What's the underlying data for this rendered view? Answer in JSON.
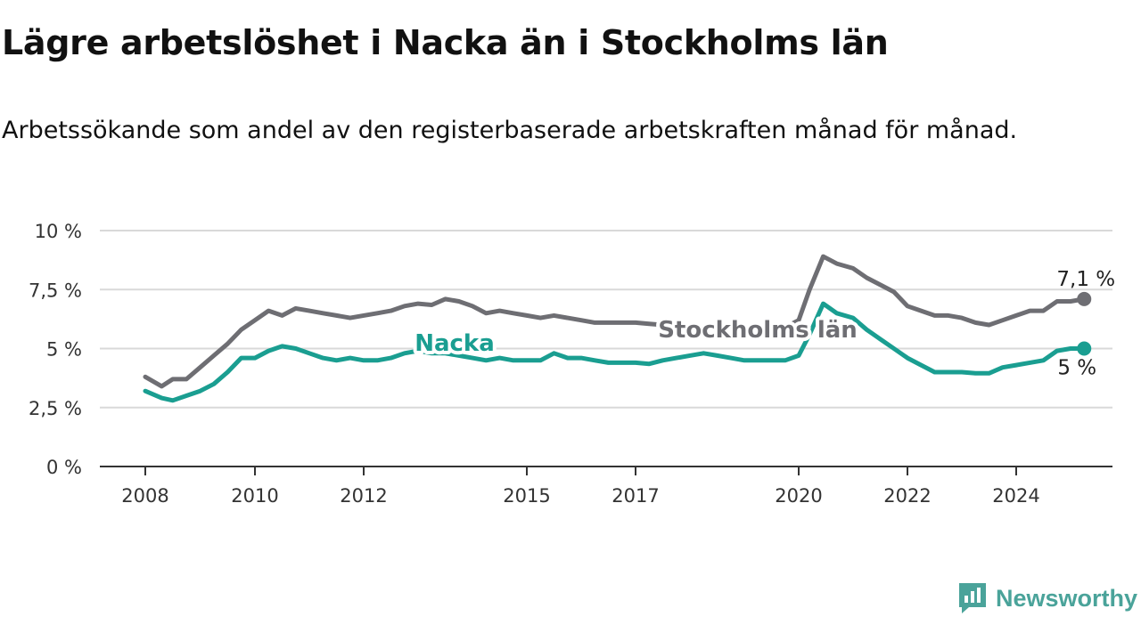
{
  "title": "Lägre arbetslöshet i Nacka än i Stockholms län",
  "subtitle": "Arbetssökande som andel av den registerbaserade arbetskraften månad för månad.",
  "brand": "Newsworthy",
  "colors": {
    "nacka": "#1a9e91",
    "stockholm": "#6e6e73",
    "grid": "#d9d9d9",
    "axis": "#333333",
    "brand": "#4aa39a"
  },
  "chart_data": {
    "type": "line",
    "title": "Lägre arbetslöshet i Nacka än i Stockholms län",
    "subtitle": "Arbetssökande som andel av den registerbaserade arbetskraften månad för månad.",
    "ylim": [
      0,
      10
    ],
    "xlim": [
      2008,
      2025.75
    ],
    "y_ticks": [
      {
        "v": 0,
        "label": "0 %"
      },
      {
        "v": 2.5,
        "label": "2,5 %"
      },
      {
        "v": 5,
        "label": "5 %"
      },
      {
        "v": 7.5,
        "label": "7,5 %"
      },
      {
        "v": 10,
        "label": "10 %"
      }
    ],
    "x_ticks": [
      {
        "v": 2008,
        "label": "2008"
      },
      {
        "v": 2010,
        "label": "2010"
      },
      {
        "v": 2012,
        "label": "2012"
      },
      {
        "v": 2015,
        "label": "2015"
      },
      {
        "v": 2017,
        "label": "2017"
      },
      {
        "v": 2020,
        "label": "2020"
      },
      {
        "v": 2022,
        "label": "2022"
      },
      {
        "v": 2024,
        "label": "2024"
      }
    ],
    "grid": true,
    "series": [
      {
        "name": "Stockholms län",
        "end_label": "7,1 %",
        "points": [
          [
            2008.0,
            3.8
          ],
          [
            2008.3,
            3.4
          ],
          [
            2008.5,
            3.7
          ],
          [
            2008.75,
            3.7
          ],
          [
            2009.0,
            4.2
          ],
          [
            2009.25,
            4.7
          ],
          [
            2009.5,
            5.2
          ],
          [
            2009.75,
            5.8
          ],
          [
            2010.0,
            6.2
          ],
          [
            2010.25,
            6.6
          ],
          [
            2010.5,
            6.4
          ],
          [
            2010.75,
            6.7
          ],
          [
            2011.0,
            6.6
          ],
          [
            2011.25,
            6.5
          ],
          [
            2011.5,
            6.4
          ],
          [
            2011.75,
            6.3
          ],
          [
            2012.0,
            6.4
          ],
          [
            2012.25,
            6.5
          ],
          [
            2012.5,
            6.6
          ],
          [
            2012.75,
            6.8
          ],
          [
            2013.0,
            6.9
          ],
          [
            2013.25,
            6.85
          ],
          [
            2013.5,
            7.1
          ],
          [
            2013.75,
            7.0
          ],
          [
            2014.0,
            6.8
          ],
          [
            2014.25,
            6.5
          ],
          [
            2014.5,
            6.6
          ],
          [
            2014.75,
            6.5
          ],
          [
            2015.0,
            6.4
          ],
          [
            2015.25,
            6.3
          ],
          [
            2015.5,
            6.4
          ],
          [
            2015.75,
            6.3
          ],
          [
            2016.0,
            6.2
          ],
          [
            2016.25,
            6.1
          ],
          [
            2016.5,
            6.1
          ],
          [
            2016.75,
            6.1
          ],
          [
            2017.0,
            6.1
          ],
          [
            2017.25,
            6.05
          ],
          [
            2017.5,
            6.0
          ],
          [
            2017.75,
            5.9
          ],
          [
            2018.0,
            5.8
          ],
          [
            2018.25,
            5.8
          ],
          [
            2018.5,
            5.7
          ],
          [
            2018.75,
            5.7
          ],
          [
            2019.0,
            5.7
          ],
          [
            2019.25,
            5.75
          ],
          [
            2019.5,
            5.8
          ],
          [
            2019.75,
            5.9
          ],
          [
            2020.0,
            6.2
          ],
          [
            2020.2,
            7.5
          ],
          [
            2020.45,
            8.9
          ],
          [
            2020.7,
            8.6
          ],
          [
            2021.0,
            8.4
          ],
          [
            2021.25,
            8.0
          ],
          [
            2021.5,
            7.7
          ],
          [
            2021.75,
            7.4
          ],
          [
            2022.0,
            6.8
          ],
          [
            2022.25,
            6.6
          ],
          [
            2022.5,
            6.4
          ],
          [
            2022.75,
            6.4
          ],
          [
            2023.0,
            6.3
          ],
          [
            2023.25,
            6.1
          ],
          [
            2023.5,
            6.0
          ],
          [
            2023.75,
            6.2
          ],
          [
            2024.0,
            6.4
          ],
          [
            2024.25,
            6.6
          ],
          [
            2024.5,
            6.6
          ],
          [
            2024.75,
            7.0
          ],
          [
            2025.0,
            7.0
          ],
          [
            2025.25,
            7.1
          ]
        ]
      },
      {
        "name": "Nacka",
        "end_label": "5 %",
        "points": [
          [
            2008.0,
            3.2
          ],
          [
            2008.3,
            2.9
          ],
          [
            2008.5,
            2.8
          ],
          [
            2008.75,
            3.0
          ],
          [
            2009.0,
            3.2
          ],
          [
            2009.25,
            3.5
          ],
          [
            2009.5,
            4.0
          ],
          [
            2009.75,
            4.6
          ],
          [
            2010.0,
            4.6
          ],
          [
            2010.25,
            4.9
          ],
          [
            2010.5,
            5.1
          ],
          [
            2010.75,
            5.0
          ],
          [
            2011.0,
            4.8
          ],
          [
            2011.25,
            4.6
          ],
          [
            2011.5,
            4.5
          ],
          [
            2011.75,
            4.6
          ],
          [
            2012.0,
            4.5
          ],
          [
            2012.25,
            4.5
          ],
          [
            2012.5,
            4.6
          ],
          [
            2012.75,
            4.8
          ],
          [
            2013.0,
            4.9
          ],
          [
            2013.25,
            4.8
          ],
          [
            2013.5,
            4.8
          ],
          [
            2013.75,
            4.7
          ],
          [
            2014.0,
            4.6
          ],
          [
            2014.25,
            4.5
          ],
          [
            2014.5,
            4.6
          ],
          [
            2014.75,
            4.5
          ],
          [
            2015.0,
            4.5
          ],
          [
            2015.25,
            4.5
          ],
          [
            2015.5,
            4.8
          ],
          [
            2015.75,
            4.6
          ],
          [
            2016.0,
            4.6
          ],
          [
            2016.25,
            4.5
          ],
          [
            2016.5,
            4.4
          ],
          [
            2016.75,
            4.4
          ],
          [
            2017.0,
            4.4
          ],
          [
            2017.25,
            4.35
          ],
          [
            2017.5,
            4.5
          ],
          [
            2017.75,
            4.6
          ],
          [
            2018.0,
            4.7
          ],
          [
            2018.25,
            4.8
          ],
          [
            2018.5,
            4.7
          ],
          [
            2018.75,
            4.6
          ],
          [
            2019.0,
            4.5
          ],
          [
            2019.25,
            4.5
          ],
          [
            2019.5,
            4.5
          ],
          [
            2019.75,
            4.5
          ],
          [
            2020.0,
            4.7
          ],
          [
            2020.2,
            5.6
          ],
          [
            2020.45,
            6.9
          ],
          [
            2020.7,
            6.5
          ],
          [
            2021.0,
            6.3
          ],
          [
            2021.25,
            5.8
          ],
          [
            2021.5,
            5.4
          ],
          [
            2021.75,
            5.0
          ],
          [
            2022.0,
            4.6
          ],
          [
            2022.25,
            4.3
          ],
          [
            2022.5,
            4.0
          ],
          [
            2022.75,
            4.0
          ],
          [
            2023.0,
            4.0
          ],
          [
            2023.25,
            3.95
          ],
          [
            2023.5,
            3.95
          ],
          [
            2023.75,
            4.2
          ],
          [
            2024.0,
            4.3
          ],
          [
            2024.25,
            4.4
          ],
          [
            2024.5,
            4.5
          ],
          [
            2024.75,
            4.9
          ],
          [
            2025.0,
            5.0
          ],
          [
            2025.25,
            5.0
          ]
        ]
      }
    ]
  }
}
